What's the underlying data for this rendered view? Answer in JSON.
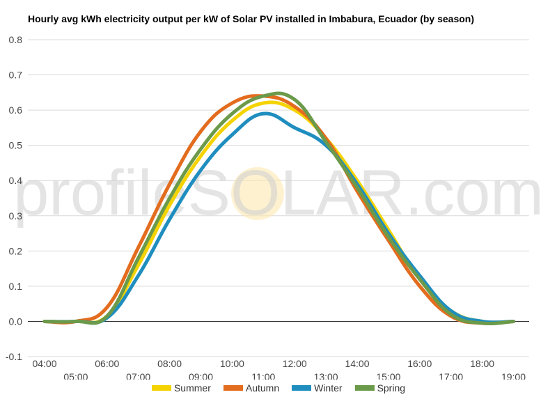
{
  "chart_data": {
    "type": "line",
    "title": "Hourly avg kWh electricity output per kW of Solar PV installed in Imbabura, Ecuador (by season)",
    "watermark": "profileSOLAR.com",
    "xlabel": "",
    "ylabel": "",
    "ylim": [
      -0.1,
      0.8
    ],
    "yticks": [
      "-0.1",
      "0.0",
      "0.1",
      "0.2",
      "0.3",
      "0.4",
      "0.5",
      "0.6",
      "0.7",
      "0.8"
    ],
    "xticks_row1": [
      "04:00",
      "06:00",
      "08:00",
      "10:00",
      "12:00",
      "14:00",
      "16:00",
      "18:00"
    ],
    "xticks_row2": [
      "05:00",
      "07:00",
      "09:00",
      "11:00",
      "13:00",
      "15:00",
      "17:00",
      "19:00"
    ],
    "x": [
      "04:00",
      "05:00",
      "06:00",
      "07:00",
      "08:00",
      "09:00",
      "10:00",
      "11:00",
      "12:00",
      "13:00",
      "14:00",
      "15:00",
      "16:00",
      "17:00",
      "18:00",
      "19:00"
    ],
    "legend_position": "bottom",
    "grid": true,
    "series": [
      {
        "name": "Summer",
        "color": "#f5d300",
        "values": [
          0.0,
          0.0,
          0.015,
          0.16,
          0.33,
          0.47,
          0.57,
          0.62,
          0.6,
          0.52,
          0.4,
          0.26,
          0.12,
          0.03,
          0.0,
          0.0
        ]
      },
      {
        "name": "Autumn",
        "color": "#e36c1e",
        "values": [
          0.0,
          0.0,
          0.04,
          0.21,
          0.39,
          0.54,
          0.62,
          0.64,
          0.61,
          0.52,
          0.37,
          0.23,
          0.1,
          0.015,
          -0.005,
          0.0
        ]
      },
      {
        "name": "Winter",
        "color": "#1f8ebf",
        "values": [
          0.0,
          0.0,
          0.01,
          0.13,
          0.29,
          0.43,
          0.53,
          0.59,
          0.55,
          0.5,
          0.39,
          0.25,
          0.13,
          0.03,
          0.0,
          0.0
        ]
      },
      {
        "name": "Spring",
        "color": "#6b9a4a",
        "values": [
          0.0,
          0.0,
          0.015,
          0.18,
          0.35,
          0.49,
          0.59,
          0.64,
          0.63,
          0.51,
          0.38,
          0.24,
          0.12,
          0.02,
          -0.005,
          0.0
        ]
      }
    ]
  }
}
